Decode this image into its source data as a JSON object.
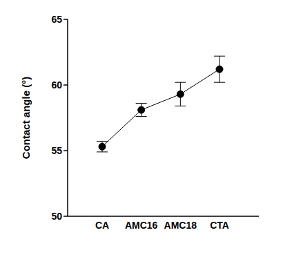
{
  "chart_data": {
    "type": "line",
    "categories": [
      "CA",
      "AMC16",
      "AMC18",
      "CTA"
    ],
    "values": [
      55.3,
      58.1,
      59.3,
      61.2
    ],
    "errors": [
      0.4,
      0.5,
      0.9,
      1.0
    ],
    "y_label": "Contact angle (°)",
    "ylim": [
      50,
      65
    ],
    "yticks": [
      50,
      55,
      60,
      65
    ],
    "color": "#000000",
    "marker": "circle",
    "grid": false
  }
}
